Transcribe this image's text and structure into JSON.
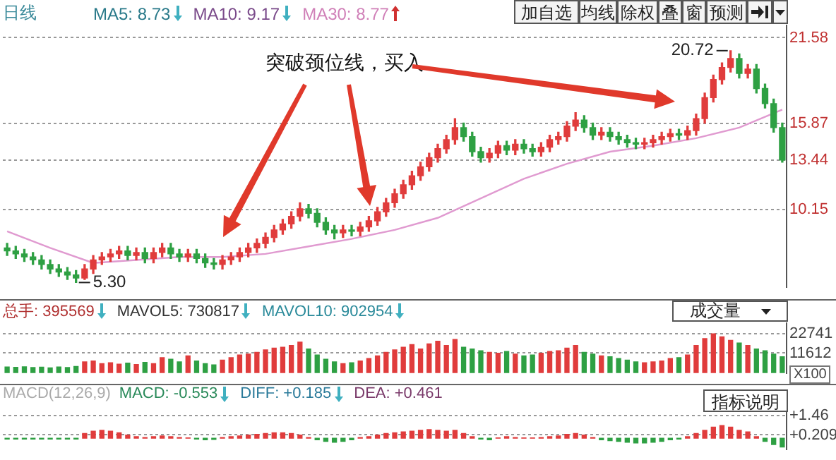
{
  "chart_data": [
    {
      "type": "candlestick",
      "title": "日线",
      "categories": [
        null,
        null,
        null,
        null,
        null,
        null,
        null,
        null,
        null,
        null,
        null,
        null,
        null,
        null,
        null,
        null,
        null,
        null,
        null,
        null,
        null,
        null,
        null,
        null,
        null,
        null,
        null,
        null,
        null,
        null,
        null,
        null,
        null,
        null,
        null,
        null,
        null,
        null,
        null,
        null,
        null,
        null,
        null,
        null,
        null,
        null,
        null,
        null,
        null,
        null,
        null,
        null,
        null,
        null,
        null,
        null,
        null,
        null,
        null,
        null,
        null,
        null,
        null,
        null,
        null,
        null,
        null,
        null,
        null,
        null,
        null,
        null,
        null,
        null,
        null,
        null,
        null,
        null,
        null,
        null,
        null,
        null,
        null,
        null,
        null,
        null,
        null,
        null,
        null,
        null,
        null
      ],
      "ohlc": [
        [
          7.6,
          7.9,
          7.1,
          7.4
        ],
        [
          7.4,
          7.7,
          6.9,
          7.2
        ],
        [
          7.2,
          7.5,
          6.7,
          7.0
        ],
        [
          7.0,
          7.3,
          6.5,
          6.8
        ],
        [
          6.8,
          7.1,
          6.2,
          6.5
        ],
        [
          6.5,
          6.8,
          5.9,
          6.2
        ],
        [
          6.2,
          6.5,
          5.7,
          6.0
        ],
        [
          6.0,
          6.3,
          5.5,
          5.8
        ],
        [
          5.8,
          6.1,
          5.3,
          5.6
        ],
        [
          5.6,
          6.5,
          5.5,
          6.2
        ],
        [
          6.2,
          7.1,
          5.9,
          6.8
        ],
        [
          6.8,
          7.3,
          6.5,
          7.0
        ],
        [
          7.0,
          7.5,
          6.7,
          7.2
        ],
        [
          7.2,
          7.7,
          6.9,
          7.4
        ],
        [
          7.4,
          7.7,
          6.8,
          7.1
        ],
        [
          7.1,
          7.6,
          6.8,
          7.3
        ],
        [
          7.3,
          7.6,
          6.6,
          6.9
        ],
        [
          6.9,
          7.6,
          6.6,
          7.3
        ],
        [
          7.3,
          7.9,
          7.0,
          7.6
        ],
        [
          7.6,
          7.9,
          6.9,
          7.2
        ],
        [
          7.2,
          7.5,
          6.7,
          7.0
        ],
        [
          7.0,
          7.5,
          6.7,
          7.2
        ],
        [
          7.2,
          7.5,
          6.6,
          6.9
        ],
        [
          6.9,
          7.2,
          6.3,
          6.6
        ],
        [
          6.6,
          6.9,
          6.2,
          6.5
        ],
        [
          6.5,
          7.1,
          6.2,
          6.8
        ],
        [
          6.8,
          7.3,
          6.5,
          7.0
        ],
        [
          7.0,
          7.6,
          6.7,
          7.3
        ],
        [
          7.3,
          7.9,
          7.0,
          7.6
        ],
        [
          7.6,
          8.2,
          7.3,
          7.9
        ],
        [
          7.9,
          8.6,
          7.6,
          8.3
        ],
        [
          8.3,
          9.1,
          8.0,
          8.8
        ],
        [
          8.8,
          9.5,
          8.5,
          9.2
        ],
        [
          9.2,
          10.0,
          8.9,
          9.7
        ],
        [
          9.7,
          10.6,
          9.4,
          10.2
        ],
        [
          10.2,
          10.5,
          9.6,
          9.9
        ],
        [
          9.9,
          10.2,
          9.0,
          9.3
        ],
        [
          9.3,
          9.6,
          8.5,
          8.8
        ],
        [
          8.8,
          9.1,
          8.2,
          8.6
        ],
        [
          8.6,
          9.1,
          8.3,
          8.8
        ],
        [
          8.8,
          9.1,
          8.4,
          8.7
        ],
        [
          8.7,
          9.3,
          8.4,
          9.0
        ],
        [
          9.0,
          9.7,
          8.7,
          9.4
        ],
        [
          9.4,
          10.3,
          9.1,
          10.0
        ],
        [
          10.0,
          10.9,
          9.7,
          10.6
        ],
        [
          10.6,
          11.5,
          10.3,
          11.2
        ],
        [
          11.2,
          12.1,
          10.9,
          11.8
        ],
        [
          11.8,
          12.7,
          11.5,
          12.4
        ],
        [
          12.4,
          13.3,
          12.1,
          13.0
        ],
        [
          13.0,
          13.9,
          12.7,
          13.6
        ],
        [
          13.6,
          14.5,
          13.3,
          14.2
        ],
        [
          14.2,
          15.1,
          13.9,
          14.8
        ],
        [
          14.8,
          16.2,
          14.5,
          15.6
        ],
        [
          15.6,
          15.9,
          14.7,
          15.0
        ],
        [
          15.0,
          15.3,
          13.7,
          14.0
        ],
        [
          14.0,
          14.3,
          13.3,
          13.6
        ],
        [
          13.6,
          14.2,
          13.3,
          13.9
        ],
        [
          13.9,
          14.7,
          13.6,
          14.4
        ],
        [
          14.4,
          14.7,
          13.8,
          14.1
        ],
        [
          14.1,
          14.8,
          13.8,
          14.5
        ],
        [
          14.5,
          14.8,
          13.9,
          14.2
        ],
        [
          14.2,
          14.5,
          13.7,
          14.0
        ],
        [
          14.0,
          14.6,
          13.7,
          14.3
        ],
        [
          14.3,
          15.1,
          14.0,
          14.8
        ],
        [
          14.8,
          15.3,
          14.5,
          15.0
        ],
        [
          15.0,
          16.0,
          14.7,
          15.7
        ],
        [
          15.7,
          16.6,
          15.4,
          16.1
        ],
        [
          16.1,
          16.4,
          15.3,
          15.6
        ],
        [
          15.6,
          15.9,
          14.8,
          15.1
        ],
        [
          15.1,
          15.6,
          14.8,
          15.3
        ],
        [
          15.3,
          15.6,
          14.7,
          15.0
        ],
        [
          15.0,
          15.3,
          14.5,
          14.8
        ],
        [
          14.8,
          15.1,
          14.3,
          14.6
        ],
        [
          14.6,
          14.9,
          14.2,
          14.5
        ],
        [
          14.5,
          14.9,
          14.2,
          14.6
        ],
        [
          14.6,
          15.1,
          14.3,
          14.8
        ],
        [
          14.8,
          15.3,
          14.5,
          15.0
        ],
        [
          15.0,
          15.5,
          14.7,
          15.2
        ],
        [
          15.2,
          15.5,
          14.8,
          15.1
        ],
        [
          15.1,
          15.7,
          14.8,
          15.4
        ],
        [
          15.4,
          16.5,
          15.1,
          16.2
        ],
        [
          16.2,
          17.9,
          15.9,
          17.6
        ],
        [
          17.6,
          19.1,
          17.3,
          18.8
        ],
        [
          18.8,
          19.9,
          18.5,
          19.6
        ],
        [
          19.6,
          20.72,
          19.3,
          20.2
        ],
        [
          20.2,
          20.5,
          18.9,
          19.2
        ],
        [
          19.2,
          19.8,
          18.9,
          19.5
        ],
        [
          19.5,
          19.8,
          17.9,
          18.2
        ],
        [
          18.2,
          18.5,
          16.9,
          17.2
        ],
        [
          17.2,
          17.5,
          15.3,
          15.6
        ],
        [
          15.6,
          15.9,
          13.3,
          13.44
        ]
      ],
      "colors": [
        "#2ea043",
        "#2ea043",
        "#2ea043",
        "#2ea043",
        "#2ea043",
        "#2ea043",
        "#2ea043",
        "#2ea043",
        "#2ea043",
        "#e03c3c",
        "#e03c3c",
        "#e03c3c",
        "#e03c3c",
        "#e03c3c",
        "#2ea043",
        "#e03c3c",
        "#2ea043",
        "#e03c3c",
        "#e03c3c",
        "#2ea043",
        "#2ea043",
        "#e03c3c",
        "#2ea043",
        "#2ea043",
        "#2ea043",
        "#e03c3c",
        "#e03c3c",
        "#e03c3c",
        "#e03c3c",
        "#e03c3c",
        "#e03c3c",
        "#e03c3c",
        "#e03c3c",
        "#e03c3c",
        "#e03c3c",
        "#2ea043",
        "#2ea043",
        "#2ea043",
        "#2ea043",
        "#e03c3c",
        "#2ea043",
        "#e03c3c",
        "#e03c3c",
        "#e03c3c",
        "#e03c3c",
        "#e03c3c",
        "#e03c3c",
        "#e03c3c",
        "#e03c3c",
        "#e03c3c",
        "#e03c3c",
        "#e03c3c",
        "#e03c3c",
        "#2ea043",
        "#2ea043",
        "#2ea043",
        "#e03c3c",
        "#e03c3c",
        "#2ea043",
        "#e03c3c",
        "#2ea043",
        "#2ea043",
        "#e03c3c",
        "#e03c3c",
        "#e03c3c",
        "#e03c3c",
        "#e03c3c",
        "#2ea043",
        "#2ea043",
        "#e03c3c",
        "#2ea043",
        "#2ea043",
        "#2ea043",
        "#2ea043",
        "#e03c3c",
        "#e03c3c",
        "#e03c3c",
        "#e03c3c",
        "#2ea043",
        "#e03c3c",
        "#e03c3c",
        "#e03c3c",
        "#e03c3c",
        "#e03c3c",
        "#e03c3c",
        "#2ea043",
        "#e03c3c",
        "#2ea043",
        "#2ea043",
        "#2ea043",
        "#2ea043"
      ],
      "series": [
        {
          "type": "line",
          "color": "#e09ad0",
          "values": [
            8.7,
            null,
            null,
            null,
            null,
            7.6,
            null,
            null,
            null,
            null,
            6.6,
            null,
            null,
            null,
            null,
            6.8,
            null,
            null,
            null,
            null,
            7.0,
            null,
            null,
            null,
            null,
            7.0,
            null,
            null,
            null,
            null,
            7.2,
            null,
            null,
            null,
            null,
            7.7,
            null,
            null,
            null,
            null,
            8.2,
            null,
            null,
            null,
            null,
            8.8,
            null,
            null,
            null,
            null,
            9.6,
            null,
            null,
            null,
            null,
            10.9,
            null,
            null,
            null,
            null,
            12.2,
            null,
            null,
            null,
            null,
            13.2,
            null,
            null,
            null,
            null,
            14.0,
            null,
            null,
            null,
            null,
            14.4,
            null,
            null,
            null,
            null,
            14.9,
            null,
            null,
            null,
            null,
            15.6,
            null,
            null,
            null,
            null,
            16.8
          ]
        }
      ],
      "ylim": [
        5.0,
        22.4
      ],
      "yticks": [
        10.15,
        13.44,
        15.87,
        21.58
      ],
      "grid": "y",
      "tick_labels": "y",
      "annotations": [
        "MA5: 8.73",
        "MA10: 9.17",
        "MA30: 8.77",
        "突破颈位线，买入",
        "5.30",
        "20.72",
        "加自选",
        "均线",
        "除权",
        "叠",
        "窗",
        "预测"
      ]
    },
    {
      "type": "bar",
      "categories": [
        null,
        null,
        null,
        null,
        null,
        null,
        null,
        null,
        null,
        null,
        null,
        null,
        null,
        null,
        null,
        null,
        null,
        null,
        null,
        null,
        null,
        null,
        null,
        null,
        null,
        null,
        null,
        null,
        null,
        null,
        null,
        null,
        null,
        null,
        null,
        null,
        null,
        null,
        null,
        null,
        null,
        null,
        null,
        null,
        null,
        null,
        null,
        null,
        null,
        null,
        null,
        null,
        null,
        null,
        null,
        null,
        null,
        null,
        null,
        null,
        null,
        null,
        null,
        null,
        null,
        null,
        null,
        null,
        null,
        null,
        null,
        null,
        null,
        null,
        null,
        null,
        null,
        null,
        null,
        null,
        null,
        null,
        null,
        null,
        null,
        null,
        null,
        null,
        null,
        null,
        null
      ],
      "values": [
        3500,
        3300,
        3600,
        3200,
        3400,
        3000,
        3500,
        3200,
        3800,
        6500,
        7000,
        5500,
        6000,
        5200,
        5800,
        5000,
        6200,
        5500,
        9000,
        8000,
        6500,
        10000,
        7000,
        5500,
        4800,
        7500,
        9000,
        10500,
        11000,
        12000,
        13500,
        14500,
        15000,
        16000,
        18000,
        14000,
        10500,
        8000,
        6500,
        5500,
        6000,
        7000,
        8500,
        10000,
        12000,
        13500,
        15000,
        16500,
        14000,
        17000,
        18500,
        16000,
        19500,
        15000,
        14000,
        13000,
        12000,
        11500,
        12500,
        11000,
        10000,
        10500,
        11500,
        12500,
        13000,
        14500,
        16000,
        12000,
        11000,
        10000,
        9500,
        8500,
        7500,
        6500,
        6000,
        6500,
        7000,
        8500,
        9000,
        10500,
        16000,
        20000,
        22800,
        21000,
        19000,
        17500,
        16000,
        14000,
        13000,
        11000,
        9500
      ],
      "colors": [
        "#2ea043",
        "#2ea043",
        "#2ea043",
        "#2ea043",
        "#2ea043",
        "#2ea043",
        "#2ea043",
        "#2ea043",
        "#2ea043",
        "#e03c3c",
        "#e03c3c",
        "#e03c3c",
        "#e03c3c",
        "#e03c3c",
        "#2ea043",
        "#e03c3c",
        "#2ea043",
        "#e03c3c",
        "#e03c3c",
        "#2ea043",
        "#2ea043",
        "#e03c3c",
        "#2ea043",
        "#2ea043",
        "#2ea043",
        "#e03c3c",
        "#e03c3c",
        "#e03c3c",
        "#e03c3c",
        "#e03c3c",
        "#e03c3c",
        "#e03c3c",
        "#e03c3c",
        "#e03c3c",
        "#e03c3c",
        "#2ea043",
        "#2ea043",
        "#2ea043",
        "#2ea043",
        "#e03c3c",
        "#2ea043",
        "#e03c3c",
        "#e03c3c",
        "#e03c3c",
        "#e03c3c",
        "#e03c3c",
        "#e03c3c",
        "#e03c3c",
        "#e03c3c",
        "#e03c3c",
        "#e03c3c",
        "#e03c3c",
        "#e03c3c",
        "#2ea043",
        "#2ea043",
        "#2ea043",
        "#e03c3c",
        "#e03c3c",
        "#2ea043",
        "#e03c3c",
        "#2ea043",
        "#2ea043",
        "#e03c3c",
        "#e03c3c",
        "#e03c3c",
        "#e03c3c",
        "#e03c3c",
        "#2ea043",
        "#2ea043",
        "#e03c3c",
        "#2ea043",
        "#2ea043",
        "#2ea043",
        "#2ea043",
        "#e03c3c",
        "#e03c3c",
        "#e03c3c",
        "#e03c3c",
        "#2ea043",
        "#e03c3c",
        "#e03c3c",
        "#e03c3c",
        "#e03c3c",
        "#e03c3c",
        "#e03c3c",
        "#2ea043",
        "#e03c3c",
        "#2ea043",
        "#2ea043",
        "#2ea043",
        "#2ea043"
      ],
      "ylim": [
        0,
        29000
      ],
      "yticks": [
        11612,
        22741
      ],
      "grid": "y",
      "tick_labels": "y",
      "annotations": [
        "总手: 395569",
        "MAVOL5: 730817",
        "MAVOL10: 902954",
        "成交量",
        "X100"
      ]
    },
    {
      "type": "bar",
      "categories": [
        null,
        null,
        null,
        null,
        null,
        null,
        null,
        null,
        null,
        null,
        null,
        null,
        null,
        null,
        null,
        null,
        null,
        null,
        null,
        null,
        null,
        null,
        null,
        null,
        null,
        null,
        null,
        null,
        null,
        null,
        null,
        null,
        null,
        null,
        null,
        null,
        null,
        null,
        null,
        null,
        null,
        null,
        null,
        null,
        null,
        null,
        null,
        null,
        null,
        null,
        null,
        null,
        null,
        null,
        null,
        null,
        null,
        null,
        null,
        null,
        null,
        null,
        null,
        null,
        null,
        null,
        null,
        null,
        null,
        null,
        null,
        null,
        null,
        null,
        null,
        null,
        null,
        null,
        null,
        null,
        null,
        null,
        null,
        null,
        null,
        null,
        null,
        null,
        null,
        null,
        null
      ],
      "values": [
        -0.05,
        -0.05,
        -0.05,
        -0.05,
        -0.05,
        -0.05,
        -0.05,
        -0.05,
        -0.05,
        0.3,
        0.45,
        0.5,
        0.45,
        0.35,
        0.2,
        0.1,
        0.05,
        0.1,
        0.15,
        0.1,
        0.05,
        0.02,
        -0.05,
        -0.1,
        -0.08,
        0.05,
        0.1,
        0.15,
        0.2,
        0.25,
        0.3,
        0.35,
        0.35,
        0.3,
        0.2,
        0.05,
        -0.1,
        -0.2,
        -0.25,
        -0.2,
        -0.1,
        0.05,
        0.1,
        0.2,
        0.3,
        0.35,
        0.4,
        0.45,
        0.5,
        0.55,
        0.5,
        0.45,
        0.5,
        0.3,
        0.1,
        -0.05,
        -0.1,
        0.02,
        0.1,
        0.05,
        0.02,
        0.02,
        0.05,
        0.1,
        0.15,
        0.25,
        0.3,
        0.2,
        0.05,
        -0.1,
        -0.15,
        -0.2,
        -0.25,
        -0.3,
        -0.3,
        -0.25,
        -0.2,
        -0.1,
        -0.05,
        0.1,
        0.3,
        0.5,
        0.7,
        0.8,
        0.7,
        0.5,
        0.4,
        0.1,
        -0.2,
        -0.4,
        -0.553
      ],
      "colors": [
        "#2ea043",
        "#2ea043",
        "#2ea043",
        "#2ea043",
        "#2ea043",
        "#2ea043",
        "#2ea043",
        "#2ea043",
        "#2ea043",
        "#e03c3c",
        "#e03c3c",
        "#e03c3c",
        "#e03c3c",
        "#e03c3c",
        "#e03c3c",
        "#e03c3c",
        "#e03c3c",
        "#e03c3c",
        "#e03c3c",
        "#e03c3c",
        "#e03c3c",
        "#e03c3c",
        "#2ea043",
        "#2ea043",
        "#2ea043",
        "#e03c3c",
        "#e03c3c",
        "#e03c3c",
        "#e03c3c",
        "#e03c3c",
        "#e03c3c",
        "#e03c3c",
        "#e03c3c",
        "#e03c3c",
        "#e03c3c",
        "#e03c3c",
        "#2ea043",
        "#2ea043",
        "#2ea043",
        "#2ea043",
        "#2ea043",
        "#e03c3c",
        "#e03c3c",
        "#e03c3c",
        "#e03c3c",
        "#e03c3c",
        "#e03c3c",
        "#e03c3c",
        "#e03c3c",
        "#e03c3c",
        "#e03c3c",
        "#e03c3c",
        "#e03c3c",
        "#e03c3c",
        "#e03c3c",
        "#2ea043",
        "#2ea043",
        "#e03c3c",
        "#e03c3c",
        "#e03c3c",
        "#e03c3c",
        "#e03c3c",
        "#e03c3c",
        "#e03c3c",
        "#e03c3c",
        "#e03c3c",
        "#e03c3c",
        "#e03c3c",
        "#e03c3c",
        "#2ea043",
        "#2ea043",
        "#2ea043",
        "#2ea043",
        "#2ea043",
        "#2ea043",
        "#2ea043",
        "#2ea043",
        "#2ea043",
        "#2ea043",
        "#e03c3c",
        "#e03c3c",
        "#e03c3c",
        "#e03c3c",
        "#e03c3c",
        "#e03c3c",
        "#e03c3c",
        "#e03c3c",
        "#e03c3c",
        "#2ea043",
        "#2ea043",
        "#2ea043"
      ],
      "ylim": [
        -0.7,
        2.2
      ],
      "yticks": [
        {
          "value": 0.209,
          "label": "+0.209"
        },
        {
          "value": 1.46,
          "label": "+1.46"
        }
      ],
      "grid": "y",
      "tick_labels": "y",
      "annotations": [
        "MACD(12,26,9)",
        "MACD: -0.553",
        "DIFF: +0.185",
        "DEA: +0.461",
        "指标说明"
      ]
    }
  ]
}
